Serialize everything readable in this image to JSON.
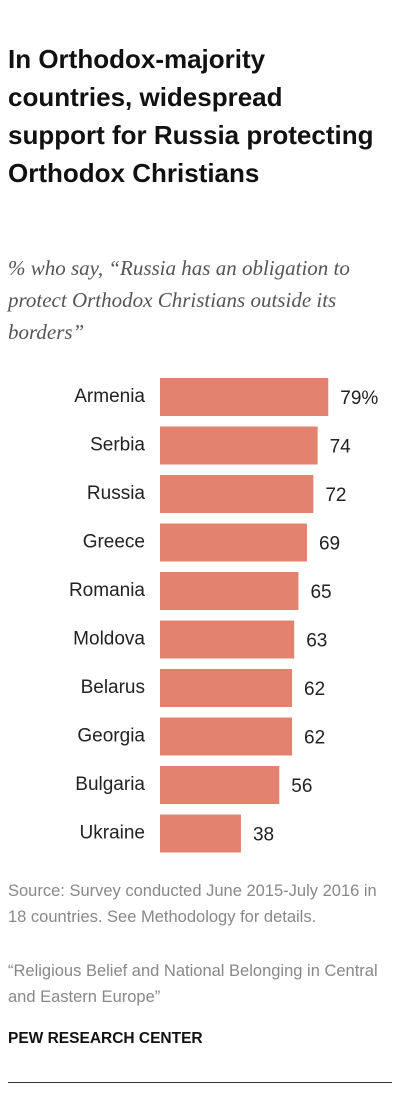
{
  "chart_data": {
    "type": "bar",
    "orientation": "horizontal",
    "title": "In Orthodox-majority countries, widespread support for Russia protecting Orthodox Christians",
    "subtitle": "% who say, “Russia has an obligation to protect Orthodox Christians outside its borders”",
    "categories": [
      "Armenia",
      "Serbia",
      "Russia",
      "Greece",
      "Romania",
      "Moldova",
      "Belarus",
      "Georgia",
      "Bulgaria",
      "Ukraine"
    ],
    "values": [
      79,
      74,
      72,
      69,
      65,
      63,
      62,
      62,
      56,
      38
    ],
    "value_labels": [
      "79%",
      "74",
      "72",
      "69",
      "65",
      "63",
      "62",
      "62",
      "56",
      "38"
    ],
    "color": "#e3826f",
    "source": "Source: Survey conducted June 2015-July 2016 in 18 countries. See Methodology for details.",
    "note": "“Religious Belief and National Belonging in Central and Eastern Europe”",
    "credit": "PEW RESEARCH CENTER"
  }
}
